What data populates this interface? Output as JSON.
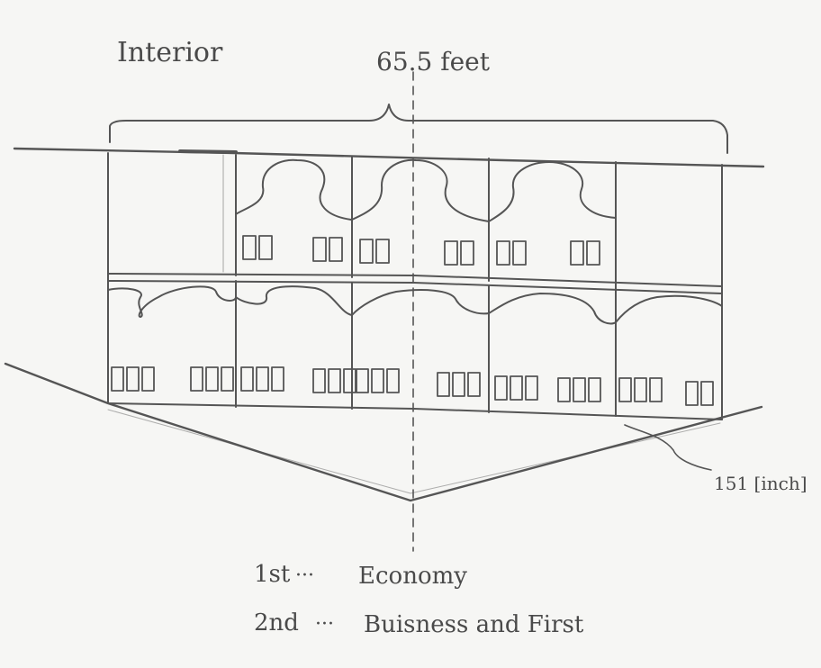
{
  "title": "Interior",
  "dimension": "65.5 feet",
  "height_note": "151 [inch]",
  "legend": [
    {
      "level": "1st",
      "sep": "···",
      "class_name": "Economy"
    },
    {
      "level": "2nd",
      "sep": "···",
      "class_name": "Buisness and First"
    }
  ],
  "decks": {
    "upper_columns": 5,
    "lower_columns": 5
  },
  "colors": {
    "pencil": "#555555",
    "paper": "#f6f6f4"
  }
}
